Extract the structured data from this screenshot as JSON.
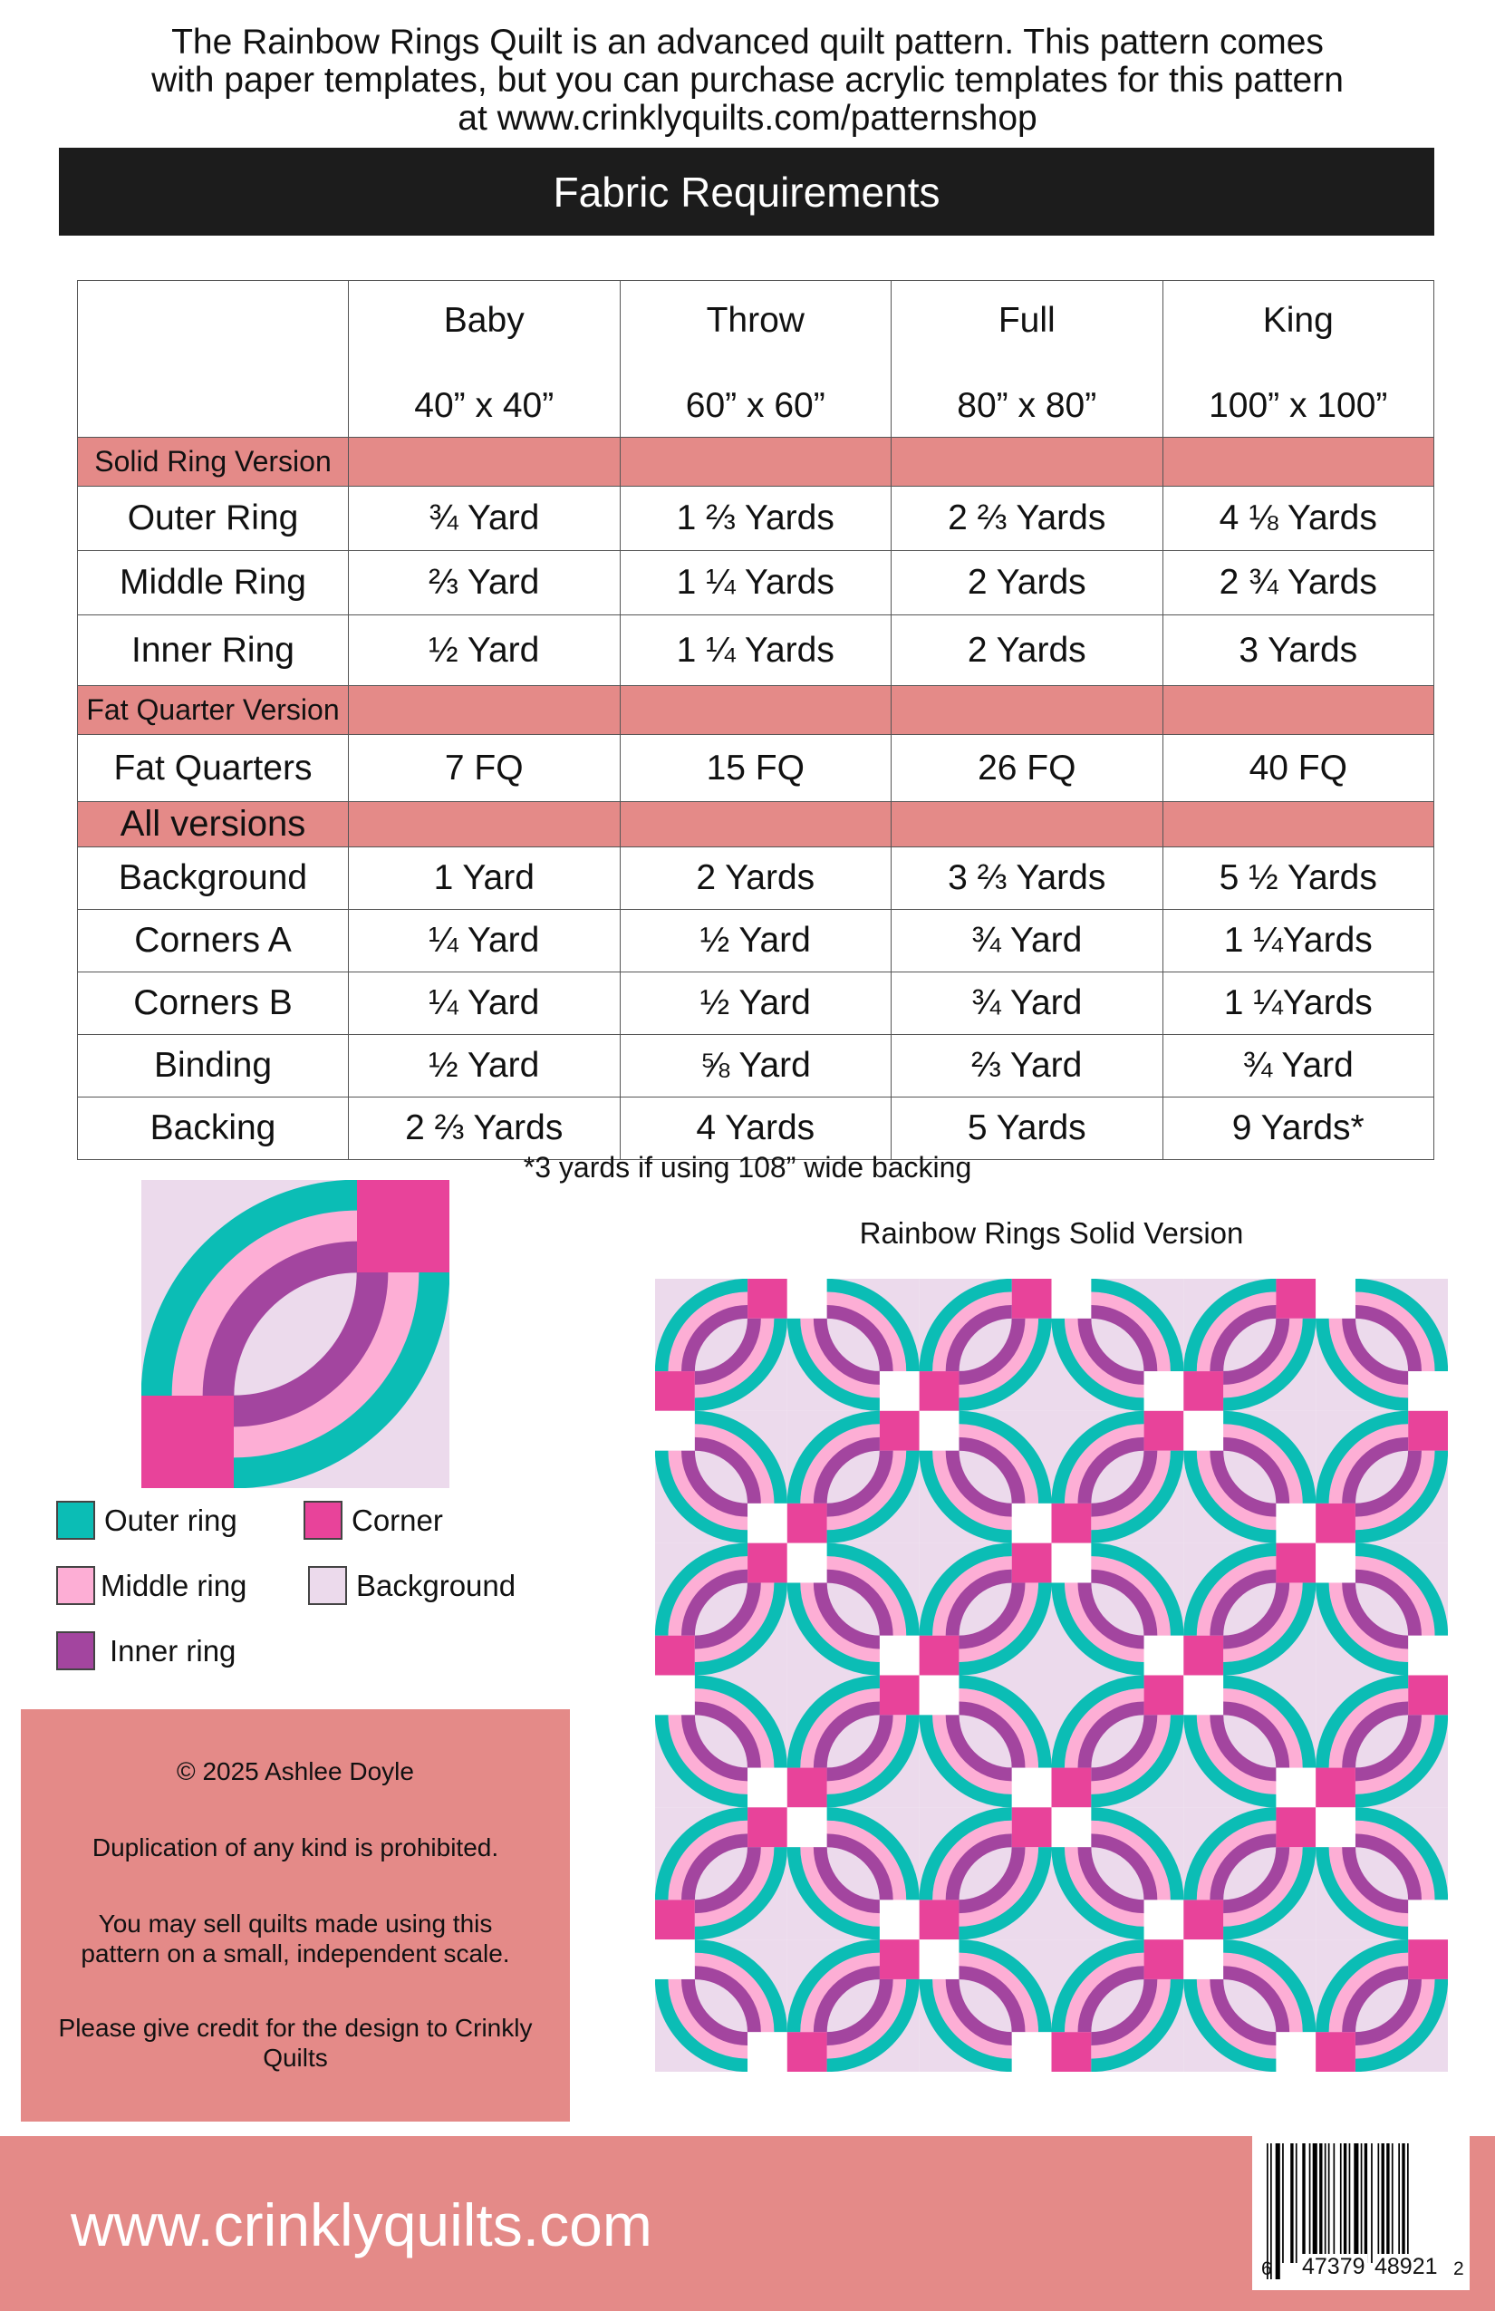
{
  "intro": {
    "lines": [
      "The Rainbow Rings Quilt is an advanced quilt pattern. This pattern comes",
      "with paper templates, but you can purchase acrylic templates for this pattern",
      "at www.crinklyquilts.com/patternshop"
    ]
  },
  "section_title": "Fabric Requirements",
  "table": {
    "columns": [
      {
        "size": "Baby",
        "dims": "40” x 40”"
      },
      {
        "size": "Throw",
        "dims": "60” x 60”"
      },
      {
        "size": "Full",
        "dims": "80” x 80”"
      },
      {
        "size": "King",
        "dims": "100” x 100”"
      }
    ],
    "sections": [
      {
        "label": "Solid Ring Version",
        "rows": [
          {
            "label": "Outer Ring",
            "values": [
              "¾ Yard",
              "1 ⅔ Yards",
              "2 ⅔ Yards",
              "4 ⅛ Yards"
            ]
          },
          {
            "label": "Middle Ring",
            "values": [
              "⅔ Yard",
              "1 ¼ Yards",
              "2 Yards",
              "2 ¾ Yards"
            ]
          },
          {
            "label": "Inner Ring",
            "values": [
              "½ Yard",
              "1 ¼ Yards",
              "2 Yards",
              "3 Yards"
            ]
          }
        ]
      },
      {
        "label": "Fat Quarter Version",
        "rows": [
          {
            "label": "Fat Quarters",
            "values": [
              "7 FQ",
              "15 FQ",
              "26 FQ",
              "40 FQ"
            ]
          }
        ]
      },
      {
        "label": "All versions",
        "rows": [
          {
            "label": "Background",
            "values": [
              "1 Yard",
              "2 Yards",
              "3 ⅔ Yards",
              "5 ½ Yards"
            ]
          },
          {
            "label": "Corners A",
            "values": [
              "¼ Yard",
              "½ Yard",
              "¾ Yard",
              "1 ¼Yards"
            ]
          },
          {
            "label": "Corners B",
            "values": [
              "¼ Yard",
              "½ Yard",
              "¾ Yard",
              "1 ¼Yards"
            ]
          },
          {
            "label": "Binding",
            "values": [
              "½ Yard",
              "⅝ Yard",
              "⅔ Yard",
              "¾ Yard"
            ]
          },
          {
            "label": "Backing",
            "values": [
              "2 ⅔ Yards",
              "4 Yards",
              "5 Yards",
              "9 Yards*"
            ]
          }
        ]
      }
    ],
    "footnote": "*3 yards if using 108” wide backing"
  },
  "legend": [
    {
      "label": "Outer ring",
      "color": "#0bbdb5"
    },
    {
      "label": "Corner",
      "color": "#e8439a"
    },
    {
      "label": "Middle ring",
      "color": "#fdaed5"
    },
    {
      "label": "Background",
      "color": "#ecdaec"
    },
    {
      "label": "Inner ring",
      "color": "#a3459f"
    }
  ],
  "colors": {
    "outer": "#0bbdb5",
    "middle": "#fdaed5",
    "inner": "#a3459f",
    "corner": "#e8439a",
    "background": "#ecdaec",
    "alt_corner": "#ffffff",
    "accent": "#e48a88"
  },
  "copyright": {
    "line1": "© 2025 Ashlee Doyle",
    "line2": "Duplication of any kind is prohibited.",
    "line3": "You may sell quilts made using this pattern on a small, independent scale.",
    "line4": "Please give credit for the design to Crinkly Quilts"
  },
  "quilt": {
    "title": "Rainbow Rings Solid Version",
    "rows": 6,
    "cols": 6
  },
  "footer": {
    "website": "www.crinklyquilts.com",
    "barcode": {
      "lead": "6",
      "left": "47379",
      "right": "48921",
      "check": "2"
    }
  }
}
